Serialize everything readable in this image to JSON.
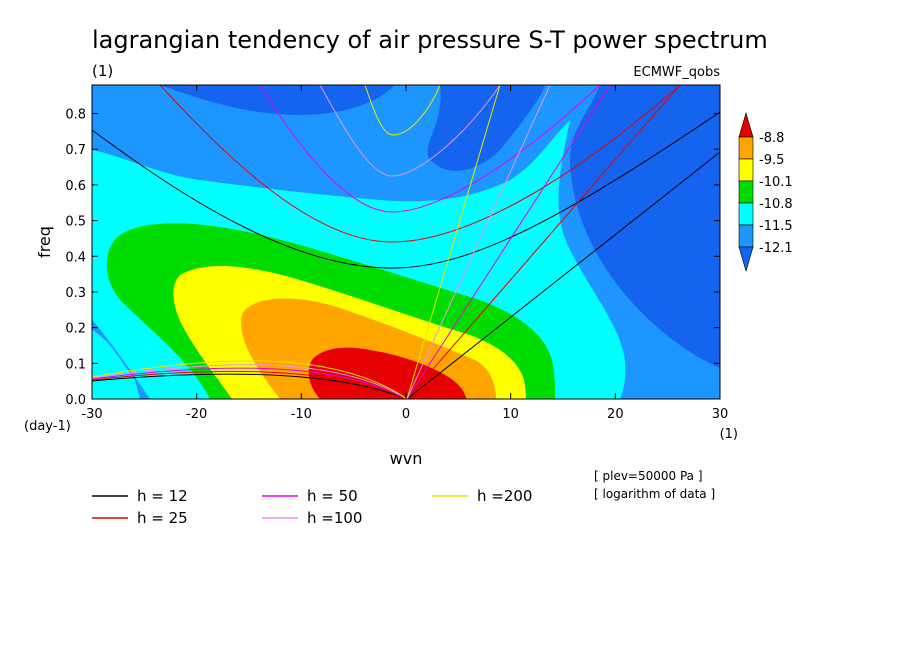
{
  "title": "lagrangian tendency of air pressure S-T power spectrum",
  "subtitle_left": "(1)",
  "subtitle_right": "ECMWF_qobs",
  "chart_data": {
    "type": "heatmap",
    "xlabel": "wvn",
    "ylabel": "freq",
    "x_unit_label": "(1)",
    "y_unit_label": "(day-1)",
    "xlim": [
      -30,
      30
    ],
    "ylim": [
      0,
      0.88
    ],
    "xticks": [
      -30,
      -20,
      -10,
      0,
      10,
      20,
      30
    ],
    "xtick_labels": [
      "-30",
      "-20",
      "-10",
      "0",
      "10",
      "20",
      "30"
    ],
    "yticks": [
      0,
      0.1,
      0.2,
      0.3,
      0.4,
      0.5,
      0.6,
      0.7,
      0.8
    ],
    "ytick_labels": [
      "0.0",
      "0.1",
      "0.2",
      "0.3",
      "0.4",
      "0.5",
      "0.6",
      "0.7",
      "0.8"
    ],
    "colorbar": {
      "levels": [
        "-8.8",
        "-9.5",
        "-10.1",
        "-10.8",
        "-11.5",
        "-12.1"
      ],
      "colors": [
        "#e60000",
        "#ffa500",
        "#ffff00",
        "#00dc00",
        "#00ffff",
        "#1e96ff",
        "#1464f0"
      ],
      "color_names": [
        "red",
        "orange",
        "yellow",
        "green",
        "cyan",
        "light-blue",
        "blue"
      ]
    },
    "contour_regions": [
      {
        "level": "red",
        "center": [
          -3,
          0.04
        ],
        "extent_x": [
          -9,
          6
        ],
        "max_freq": 0.15
      },
      {
        "level": "orange",
        "extent_x": [
          -16,
          9
        ],
        "max_freq": 0.3
      },
      {
        "level": "yellow",
        "extent_x": [
          -21,
          11
        ],
        "max_freq": 0.38
      },
      {
        "level": "green",
        "extent_x": [
          -28,
          14
        ],
        "max_freq": 0.5
      },
      {
        "level": "cyan",
        "extent_x": [
          -30,
          21
        ],
        "max_freq": 0.67
      }
    ],
    "dispersion_curves": [
      {
        "name": "h = 12",
        "h": 12,
        "color": "#000000"
      },
      {
        "name": "h = 25",
        "h": 25,
        "color": "#e60000"
      },
      {
        "name": "h = 50",
        "h": 50,
        "color": "#e600e6"
      },
      {
        "name": "h =100",
        "h": 100,
        "color": "#e696e6"
      },
      {
        "name": "h =200",
        "h": 200,
        "color": "#e6e600"
      }
    ],
    "annotations": [
      "[ plev=50000 Pa ]",
      "[ logarithm of data ]"
    ]
  },
  "colors": {
    "red": "#e60000",
    "orange": "#ffa500",
    "yellow": "#ffff00",
    "green": "#00dc00",
    "cyan": "#00ffff",
    "lightblue": "#1e96ff",
    "blue": "#1464f0"
  }
}
